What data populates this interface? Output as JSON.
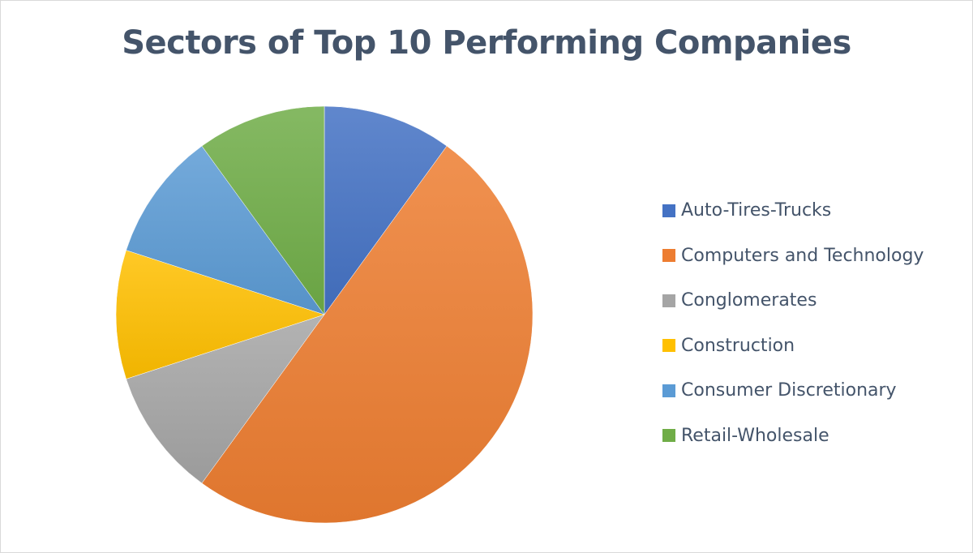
{
  "chart_data": {
    "type": "pie",
    "title": "Sectors of Top 10 Performing Companies",
    "categories": [
      "Auto-Tires-Trucks",
      "Computers and Technology",
      "Conglomerates",
      "Construction",
      "Consumer Discretionary",
      "Retail-Wholesale"
    ],
    "values": [
      1,
      5,
      1,
      1,
      1,
      1
    ],
    "percentages": [
      10,
      50,
      10,
      10,
      10,
      10
    ],
    "colors": [
      "#4472c4",
      "#ed7d31",
      "#a5a5a5",
      "#ffc000",
      "#5b9bd5",
      "#70ad47"
    ],
    "legend_position": "right",
    "start_angle": 0,
    "direction": "clockwise"
  },
  "legend": {
    "items": [
      {
        "label": "Auto-Tires-Trucks",
        "color": "#4472c4"
      },
      {
        "label": "Computers and Technology",
        "color": "#ed7d31"
      },
      {
        "label": "Conglomerates",
        "color": "#a5a5a5"
      },
      {
        "label": "Construction",
        "color": "#ffc000"
      },
      {
        "label": "Consumer Discretionary",
        "color": "#5b9bd5"
      },
      {
        "label": "Retail-Wholesale",
        "color": "#70ad47"
      }
    ]
  }
}
